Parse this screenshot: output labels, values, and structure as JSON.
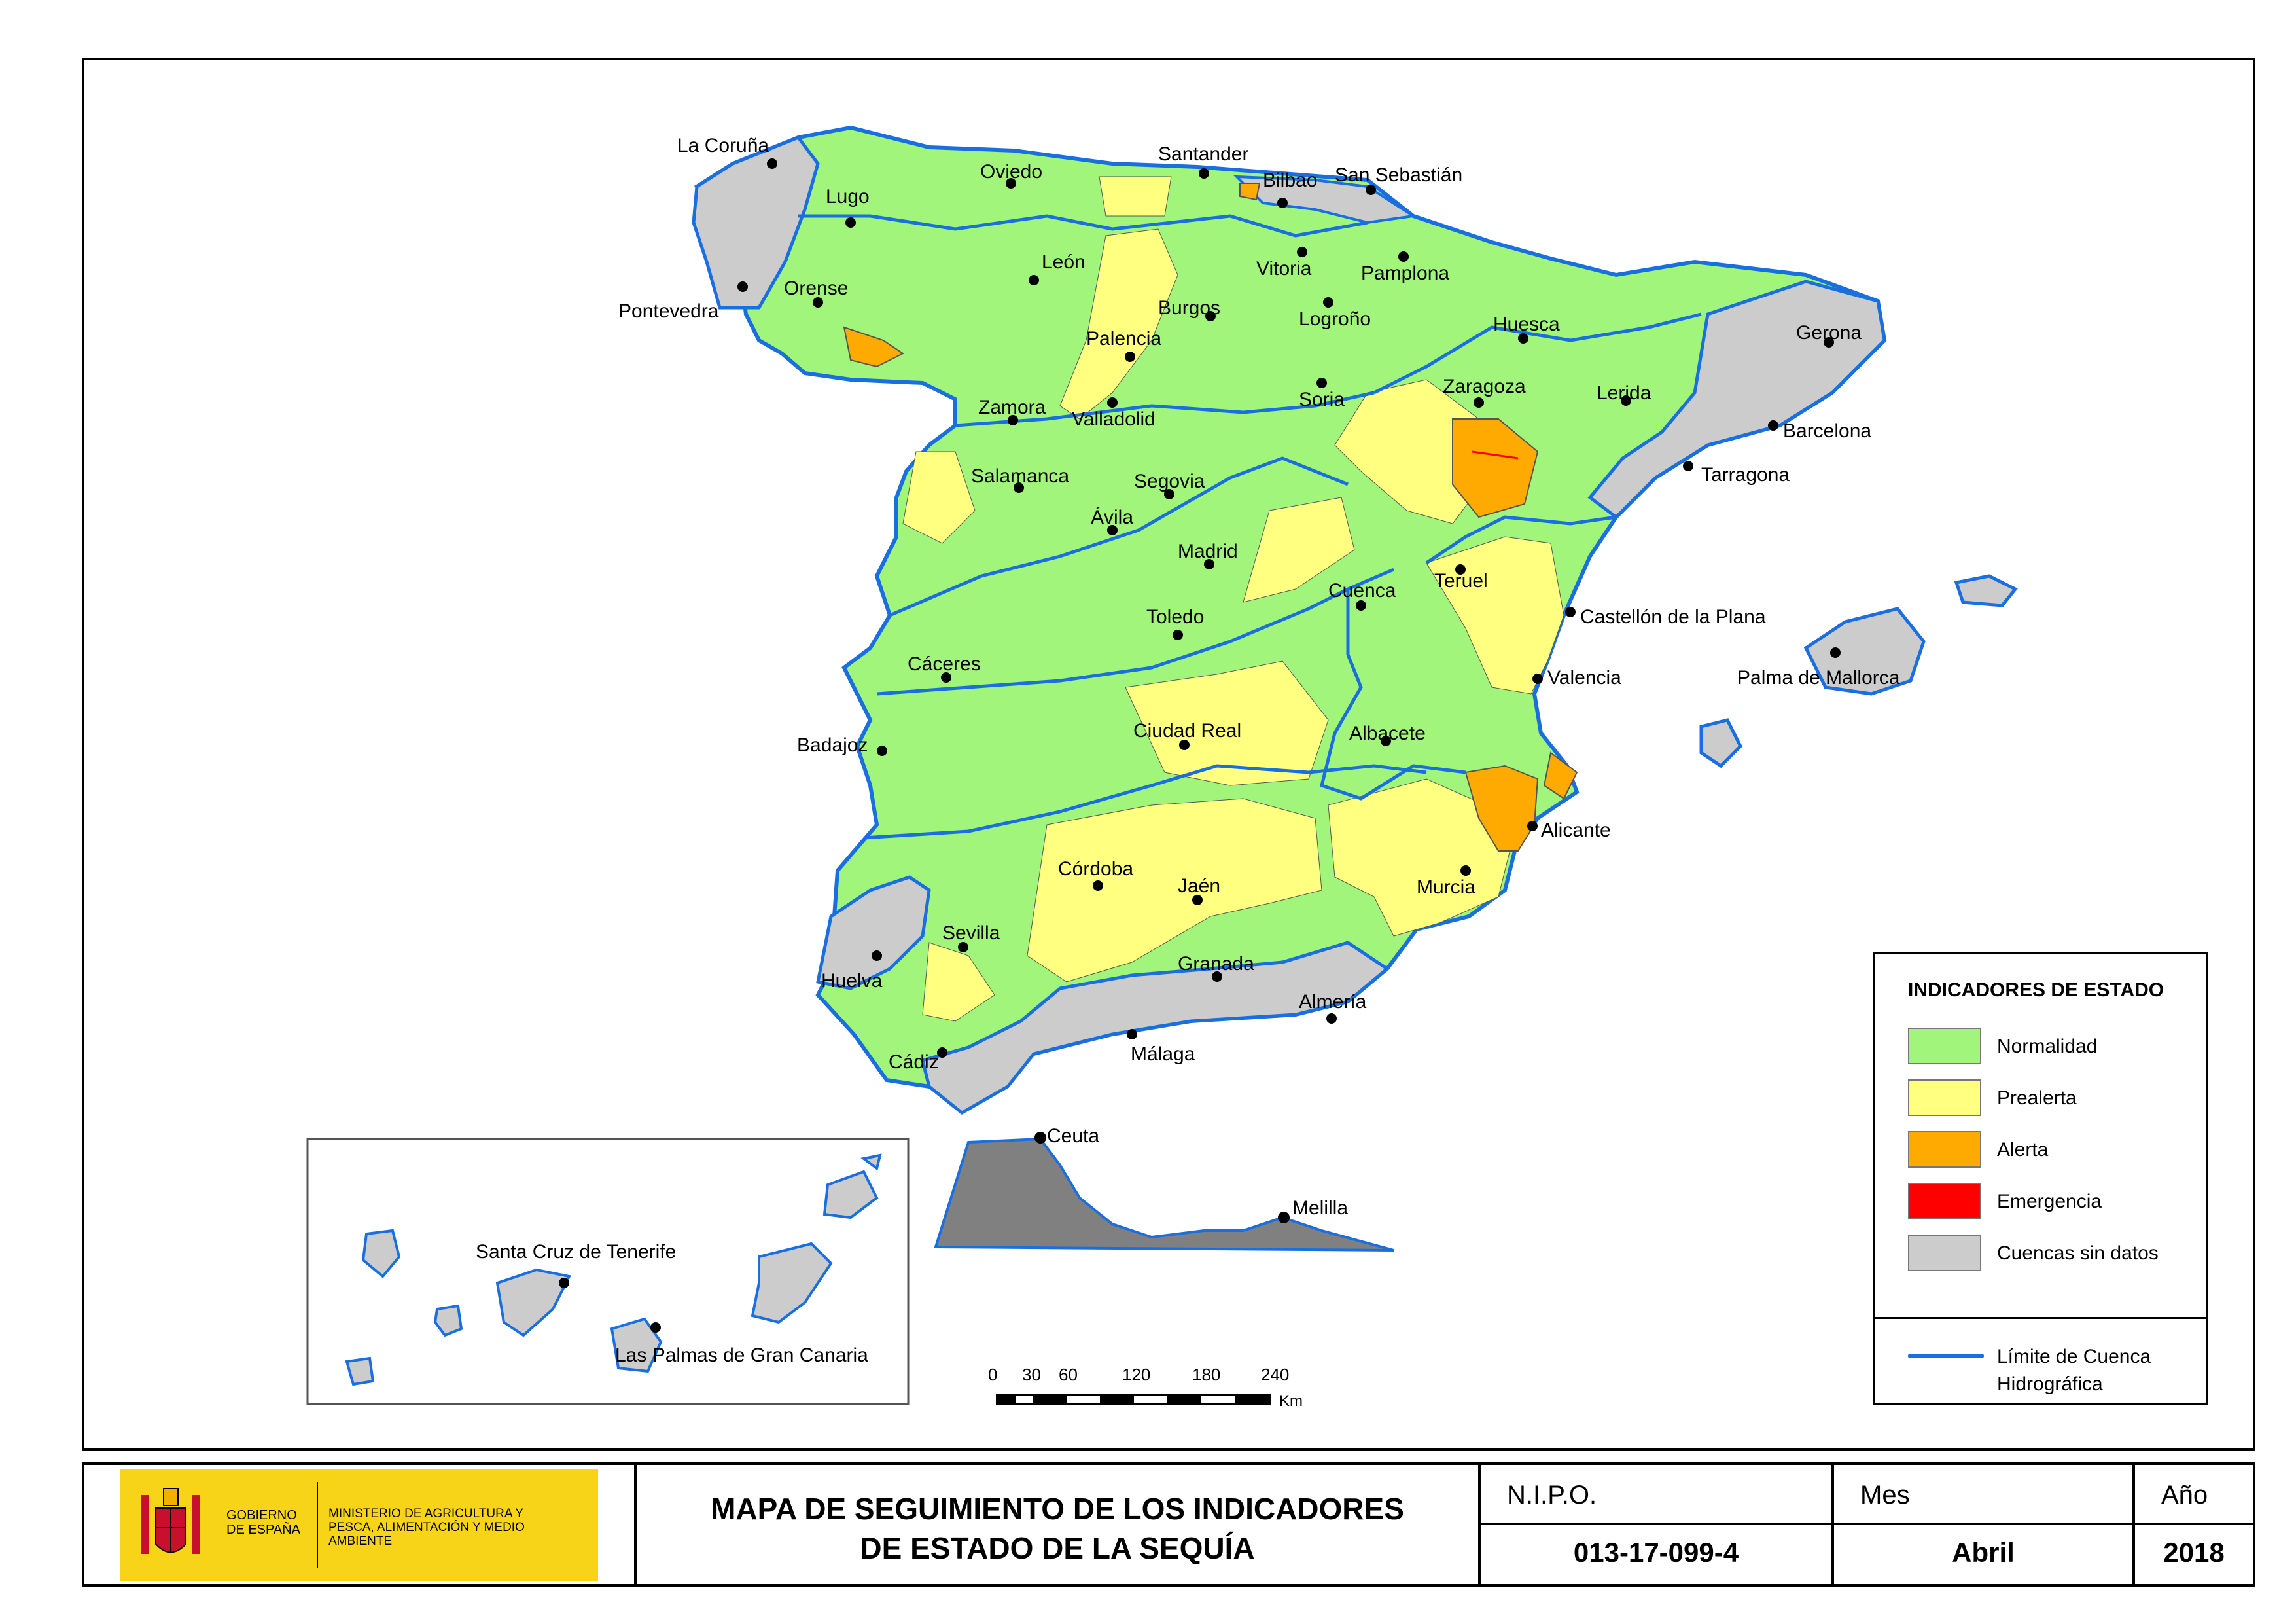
{
  "map": {
    "cities": [
      {
        "name": "La Coruña"
      },
      {
        "name": "Lugo"
      },
      {
        "name": "Oviedo"
      },
      {
        "name": "Santander"
      },
      {
        "name": "Bilbao"
      },
      {
        "name": "San Sebastián"
      },
      {
        "name": "Pontevedra"
      },
      {
        "name": "Orense"
      },
      {
        "name": "León"
      },
      {
        "name": "Vitoria"
      },
      {
        "name": "Pamplona"
      },
      {
        "name": "Burgos"
      },
      {
        "name": "Logroño"
      },
      {
        "name": "Palencia"
      },
      {
        "name": "Huesca"
      },
      {
        "name": "Gerona"
      },
      {
        "name": "Zamora"
      },
      {
        "name": "Valladolid"
      },
      {
        "name": "Soria"
      },
      {
        "name": "Zaragoza"
      },
      {
        "name": "Lerida"
      },
      {
        "name": "Barcelona"
      },
      {
        "name": "Tarragona"
      },
      {
        "name": "Salamanca"
      },
      {
        "name": "Segovia"
      },
      {
        "name": "Ávila"
      },
      {
        "name": "Madrid"
      },
      {
        "name": "Teruel"
      },
      {
        "name": "Cuenca"
      },
      {
        "name": "Castellón de la Plana"
      },
      {
        "name": "Toledo"
      },
      {
        "name": "Palma de Mallorca"
      },
      {
        "name": "Cáceres"
      },
      {
        "name": "Valencia"
      },
      {
        "name": "Ciudad Real"
      },
      {
        "name": "Badajoz"
      },
      {
        "name": "Albacete"
      },
      {
        "name": "Alicante"
      },
      {
        "name": "Córdoba"
      },
      {
        "name": "Murcia"
      },
      {
        "name": "Jaén"
      },
      {
        "name": "Sevilla"
      },
      {
        "name": "Granada"
      },
      {
        "name": "Huelva"
      },
      {
        "name": "Almería"
      },
      {
        "name": "Cádiz"
      },
      {
        "name": "Málaga"
      },
      {
        "name": "Ceuta"
      },
      {
        "name": "Melilla"
      },
      {
        "name": "Santa Cruz de Tenerife"
      },
      {
        "name": "Las Palmas de Gran Canaria"
      }
    ],
    "scale": {
      "ticks": [
        "0",
        "30",
        "60",
        "120",
        "180",
        "240"
      ],
      "unit": "Km"
    }
  },
  "legend": {
    "title": "INDICADORES DE ESTADO",
    "items": [
      {
        "label": "Normalidad",
        "color": "#a0f57a"
      },
      {
        "label": "Prealerta",
        "color": "#ffff80"
      },
      {
        "label": "Alerta",
        "color": "#ffaa00"
      },
      {
        "label": "Emergencia",
        "color": "#ff0000"
      },
      {
        "label": "Cuencas sin datos",
        "color": "#cccccc"
      }
    ],
    "line_label": "Límite de Cuenca Hidrográfica",
    "line_color": "#1a6fe0"
  },
  "footer": {
    "logo_gobierno": "GOBIERNO DE ESPAÑA",
    "logo_ministerio": "MINISTERIO DE AGRICULTURA Y PESCA, ALIMENTACIÓN Y MEDIO AMBIENTE",
    "title_line1": "MAPA DE SEGUIMIENTO DE LOS INDICADORES",
    "title_line2": "DE ESTADO DE LA SEQUÍA",
    "nipo_label": "N.I.P.O.",
    "nipo_value": "013-17-099-4",
    "mes_label": "Mes",
    "mes_value": "Abril",
    "anio_label": "Año",
    "anio_value": "2018"
  }
}
